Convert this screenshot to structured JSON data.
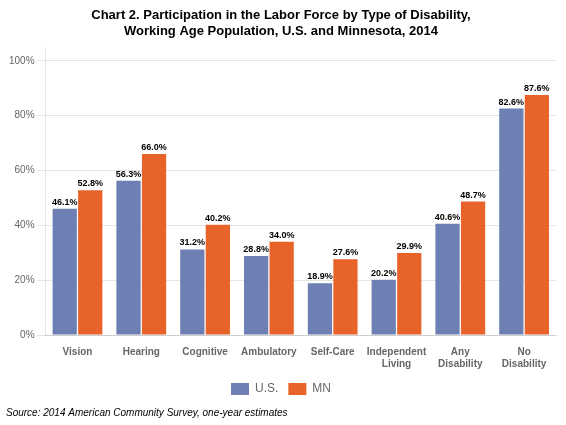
{
  "chart_data": {
    "type": "bar",
    "title": "Chart 2. Participation in the Labor Force by Type of Disability,\nWorking Age Population, U.S. and Minnesota, 2014",
    "source": "Source: 2014 American Community Survey, one-year estimates",
    "categories": [
      "Vision",
      "Hearing",
      "Cognitive",
      "Ambulatory",
      "Self-Care",
      "Independent\nLiving",
      "Any\nDisability",
      "No\nDisability"
    ],
    "series": [
      {
        "name": "U.S.",
        "color": "#6D7FB3",
        "values": [
          46.1,
          56.3,
          31.2,
          28.8,
          18.9,
          20.2,
          40.6,
          82.6
        ],
        "value_labels": [
          "46.1%",
          "56.3%",
          "31.2%",
          "28.8%",
          "18.9%",
          "20.2%",
          "40.6%",
          "82.6%"
        ]
      },
      {
        "name": "MN",
        "color": "#E8632A",
        "values": [
          52.8,
          66.0,
          40.2,
          34.0,
          27.6,
          29.9,
          48.7,
          87.6
        ],
        "value_labels": [
          "52.8%",
          "66.0%",
          "40.2%",
          "34.0%",
          "27.6%",
          "29.9%",
          "48.7%",
          "87.6%"
        ]
      }
    ],
    "ylim": [
      0,
      105
    ],
    "yticks": [
      {
        "value": 0,
        "label": "0%"
      },
      {
        "value": 20,
        "label": "20%"
      },
      {
        "value": 40,
        "label": "40%"
      },
      {
        "value": 60,
        "label": "60%"
      },
      {
        "value": 80,
        "label": "80%"
      },
      {
        "value": 100,
        "label": "100%"
      }
    ],
    "grid": true,
    "legend": "bottom",
    "data_labels": true
  }
}
